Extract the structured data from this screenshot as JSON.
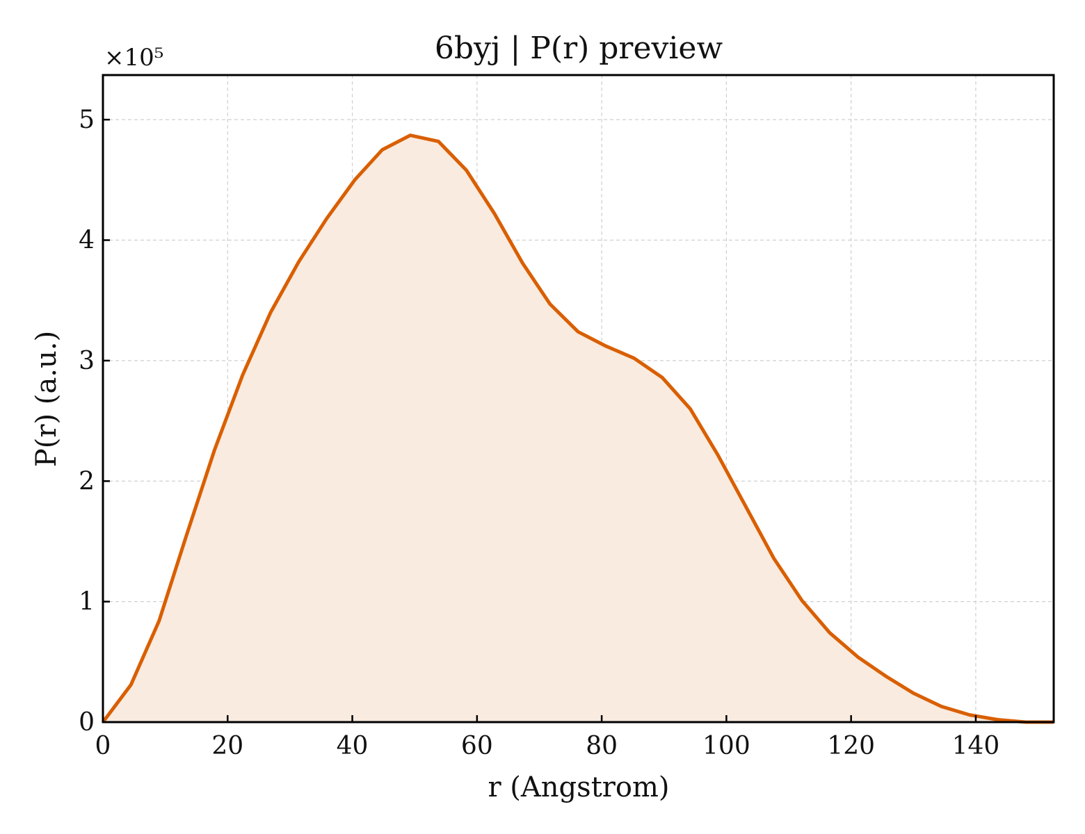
{
  "chart_data": {
    "type": "area",
    "title": "6byj | P(r) preview",
    "xlabel": "r (Angstrom)",
    "ylabel": "P(r) (a.u.)",
    "y_multiplier_label": "×10⁵",
    "xlim": [
      0,
      152.5
    ],
    "ylim": [
      0,
      5.37
    ],
    "x_ticks": [
      0,
      20,
      40,
      60,
      80,
      100,
      120,
      140
    ],
    "y_ticks": [
      0,
      1,
      2,
      3,
      4,
      5
    ],
    "grid": true,
    "color": "#d95f02",
    "fill_color": "#f9ebe0",
    "series": [
      {
        "x": [
          0,
          4.5,
          9,
          13.4,
          17.9,
          22.4,
          26.9,
          31.4,
          35.9,
          40.4,
          44.8,
          49.3,
          53.8,
          58.3,
          62.8,
          67.3,
          71.7,
          76.2,
          80.7,
          85.2,
          89.7,
          94.2,
          98.6,
          103.1,
          107.6,
          112.1,
          116.6,
          121.1,
          125.6,
          130,
          134.5,
          139,
          143.5,
          148,
          152.5
        ],
        "y": [
          0,
          0.31,
          0.84,
          1.55,
          2.26,
          2.88,
          3.4,
          3.82,
          4.18,
          4.5,
          4.75,
          4.87,
          4.82,
          4.58,
          4.22,
          3.81,
          3.47,
          3.24,
          3.12,
          3.02,
          2.86,
          2.6,
          2.22,
          1.79,
          1.36,
          1.01,
          0.74,
          0.54,
          0.38,
          0.24,
          0.13,
          0.06,
          0.02,
          0,
          0
        ]
      }
    ]
  }
}
